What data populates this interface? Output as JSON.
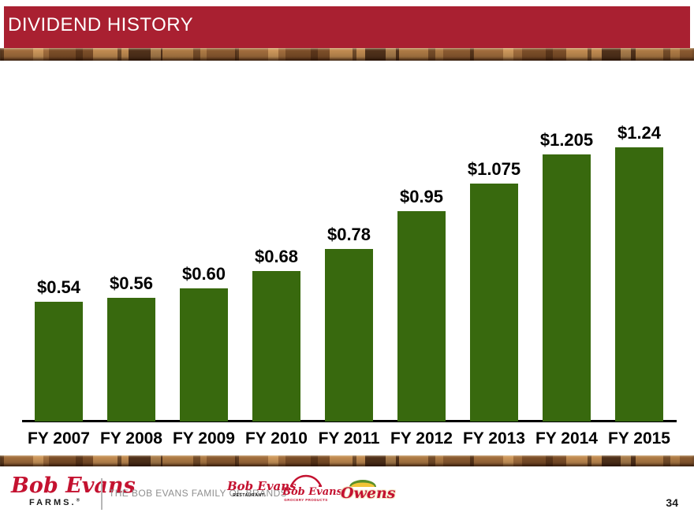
{
  "header": {
    "title": "DIVIDEND HISTORY"
  },
  "chart_data": {
    "type": "bar",
    "title": "DIVIDEND HISTORY",
    "categories": [
      "FY 2007",
      "FY 2008",
      "FY 2009",
      "FY 2010",
      "FY 2011",
      "FY 2012",
      "FY 2013",
      "FY 2014",
      "FY 2015"
    ],
    "values": [
      0.54,
      0.56,
      0.6,
      0.68,
      0.78,
      0.95,
      1.075,
      1.205,
      1.24
    ],
    "value_labels": [
      "$0.54",
      "$0.56",
      "$0.60",
      "$0.68",
      "$0.78",
      "$0.95",
      "$1.075",
      "$1.205",
      "$1.24"
    ],
    "xlabel": "",
    "ylabel": "",
    "ylim": [
      0,
      1.3
    ],
    "grid": false,
    "legend": "none",
    "bar_color": "#38690E",
    "axis_line_color": "#000000"
  },
  "footer": {
    "farms_logo": {
      "script": "Bob Evans",
      "sub": "FARMS.",
      "reg": "®"
    },
    "family_text": "THE BOB EVANS FAMILY OF BRANDS",
    "restaurant_logo": {
      "script": "Bob Evans",
      "sub": "RESTAURANT."
    },
    "grocery_logo": {
      "script": "Bob Evans",
      "sub": "GROCERY PRODUCTS"
    },
    "owens_logo": {
      "script": "Owens"
    },
    "page_number": "34"
  },
  "colors": {
    "header_red": "#A92031",
    "bar_green": "#38690E",
    "logo_red": "#C41230",
    "family_text_gray": "#8F8F8F"
  }
}
